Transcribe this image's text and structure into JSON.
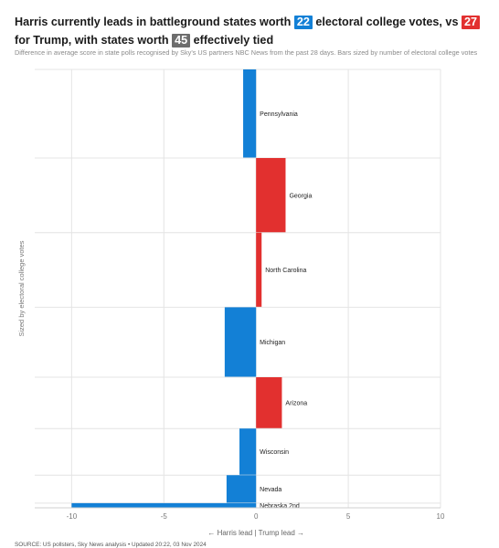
{
  "header": {
    "title_part1": "Harris currently leads in battleground states worth ",
    "harris_votes": "22",
    "title_part2": " electoral college votes, vs ",
    "trump_votes": "27",
    "title_part3": " for Trump, with states worth ",
    "tied_votes": "45",
    "title_part4": " effectively tied",
    "subtitle": "Difference in average score in state polls recognised by Sky's US partners NBC News from the past 28 days. Bars sized by number of electoral college votes"
  },
  "colors": {
    "harris": "#1380d6",
    "trump": "#e2302f",
    "tied": "#6d6d6d",
    "grid": "#e4e4e4"
  },
  "chart_data": {
    "type": "bar",
    "orientation": "horizontal",
    "title": "",
    "xlabel": "← Harris lead | Trump lead →",
    "ylabel": "Sized by electoral college votes",
    "xlim": [
      -12,
      10
    ],
    "xticks": [
      -10,
      -5,
      0,
      5,
      10
    ],
    "grid": true,
    "categories": [
      "Pennsylvania",
      "Georgia",
      "North Carolina",
      "Michigan",
      "Arizona",
      "Wisconsin",
      "Nevada",
      "Nebraska 2nd"
    ],
    "values": [
      -0.7,
      1.6,
      0.3,
      -1.7,
      1.4,
      -0.9,
      -1.6,
      -10.0
    ],
    "electoral_votes": [
      19,
      16,
      16,
      15,
      11,
      10,
      6,
      1
    ]
  },
  "source": "SOURCE: US pollsters, Sky News analysis • Updated 20:22, 03 Nov 2024"
}
